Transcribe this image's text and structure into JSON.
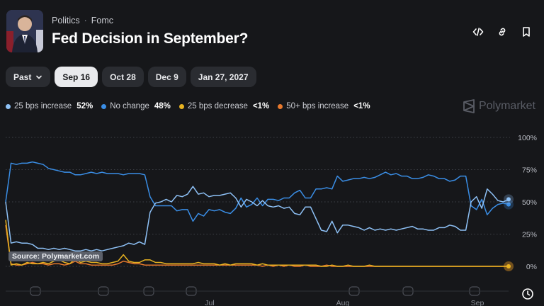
{
  "header": {
    "crumbs": [
      "Politics",
      "Fomc"
    ],
    "title": "Fed Decision in September?"
  },
  "header_icons": [
    "code-embed-icon",
    "link-icon",
    "bookmark-icon"
  ],
  "tabs": [
    {
      "label": "Past",
      "dropdown": true
    },
    {
      "label": "Sep 16",
      "active": true
    },
    {
      "label": "Oct 28"
    },
    {
      "label": "Dec 9"
    },
    {
      "label": "Jan 27, 2027"
    }
  ],
  "legend": [
    {
      "label": "25 bps increase",
      "value": "52%",
      "color": "#8ec1f6"
    },
    {
      "label": "No change",
      "value": "48%",
      "color": "#3a8ee6"
    },
    {
      "label": "25 bps decrease",
      "value": "<1%",
      "color": "#e8b321"
    },
    {
      "label": "50+ bps increase",
      "value": "<1%",
      "color": "#e8792d"
    }
  ],
  "brand": "Polymarket",
  "source": "Source: Polymarket.com",
  "chart_data": {
    "type": "line",
    "y_ticks": [
      "100%",
      "75%",
      "50%",
      "25%",
      "0%"
    ],
    "ylim": [
      0,
      100
    ],
    "x_ticks": [
      "Jul",
      "Aug",
      "Sep"
    ],
    "grid": true,
    "series": [
      {
        "name": "25 bps increase",
        "color": "#8ec1f6",
        "values": [
          50,
          18,
          19,
          18,
          18,
          17,
          14,
          14,
          13,
          14,
          13,
          14,
          13,
          12,
          12,
          13,
          12,
          13,
          12,
          13,
          14,
          15,
          16,
          18,
          17,
          19,
          17,
          42,
          49,
          50,
          52,
          50,
          55,
          54,
          56,
          62,
          56,
          57,
          54,
          55,
          55,
          56,
          57,
          53,
          46,
          52,
          50,
          47,
          51,
          47,
          46,
          47,
          45,
          46,
          41,
          40,
          46,
          46,
          37,
          28,
          27,
          35,
          26,
          32,
          32,
          31,
          30,
          28,
          30,
          28,
          29,
          28,
          29,
          28,
          29,
          30,
          31,
          29,
          29,
          28,
          28,
          30,
          30,
          32,
          31,
          28,
          28,
          50,
          54,
          45,
          60,
          56,
          51,
          50,
          52
        ]
      },
      {
        "name": "No change",
        "color": "#3a8ee6",
        "values": [
          50,
          80,
          79,
          80,
          80,
          81,
          80,
          79,
          76,
          75,
          74,
          73,
          73,
          71,
          71,
          72,
          73,
          72,
          73,
          72,
          72,
          72,
          71,
          72,
          72,
          72,
          71,
          54,
          47,
          47,
          47,
          47,
          43,
          44,
          44,
          35,
          41,
          39,
          44,
          43,
          44,
          42,
          41,
          45,
          53,
          46,
          48,
          53,
          47,
          52,
          52,
          51,
          53,
          53,
          57,
          59,
          53,
          53,
          60,
          60,
          61,
          60,
          70,
          66,
          67,
          68,
          68,
          69,
          68,
          69,
          71,
          73,
          71,
          72,
          70,
          70,
          68,
          68,
          69,
          71,
          70,
          68,
          68,
          66,
          67,
          70,
          70,
          47,
          44,
          52,
          40,
          45,
          48,
          49,
          48
        ]
      },
      {
        "name": "25 bps decrease",
        "color": "#e8b321",
        "values": [
          36,
          1,
          2,
          1,
          3,
          2,
          2,
          3,
          2,
          4,
          5,
          3,
          2,
          6,
          3,
          4,
          3,
          3,
          2,
          2,
          3,
          4,
          9,
          4,
          3,
          3,
          5,
          5,
          3,
          3,
          2,
          2,
          2,
          2,
          2,
          2,
          3,
          2,
          2,
          2,
          1,
          2,
          1,
          2,
          2,
          2,
          2,
          1,
          2,
          1,
          1,
          1,
          1,
          1,
          1,
          1,
          1,
          1,
          1,
          0,
          0,
          1,
          0,
          0,
          1,
          0,
          0,
          0,
          1,
          0,
          0,
          0,
          0,
          0,
          0,
          0,
          0,
          0,
          0,
          0,
          0,
          0,
          0,
          0,
          0,
          0,
          0,
          0,
          0,
          0,
          0,
          0,
          0,
          0,
          0
        ]
      },
      {
        "name": "50+ bps increase",
        "color": "#e8792d",
        "values": [
          32,
          2,
          1,
          1,
          2,
          3,
          2,
          2,
          1,
          2,
          2,
          1,
          2,
          4,
          2,
          2,
          1,
          1,
          1,
          1,
          1,
          2,
          4,
          3,
          2,
          2,
          1,
          1,
          1,
          1,
          1,
          1,
          1,
          1,
          1,
          1,
          1,
          1,
          1,
          1,
          1,
          1,
          1,
          1,
          1,
          1,
          1,
          1,
          0,
          1,
          0,
          1,
          0,
          1,
          0,
          0,
          1,
          0,
          0,
          0,
          1,
          0,
          0,
          0,
          0,
          0,
          0,
          0,
          0,
          0,
          0,
          0,
          0,
          0,
          0,
          0,
          0,
          0,
          0,
          0,
          0,
          0,
          0,
          0,
          0,
          0,
          0,
          0,
          0,
          0,
          0,
          0,
          0,
          0,
          0
        ]
      }
    ]
  }
}
